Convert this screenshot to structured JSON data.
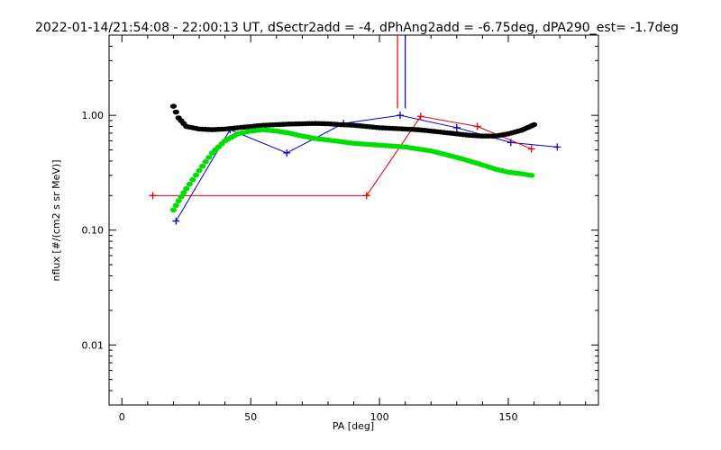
{
  "chart_data": {
    "type": "line",
    "title": "2022-01-14/21:54:08 - 22:00:13 UT, dSectr2add = -4, dPhAng2add = -6.75deg, dPA290_est=  -1.7deg",
    "xlabel": "PA [deg]",
    "ylabel": "nflux [#/(cm2 s sr MeV)]",
    "x_scale": "linear",
    "y_scale": "log",
    "xlim": [
      -5,
      185
    ],
    "ylim": [
      0.003,
      5
    ],
    "x_ticks": [
      0,
      50,
      100,
      150
    ],
    "x_tick_labels": [
      "0",
      "50",
      "100",
      "150"
    ],
    "y_ticks": [
      0.01,
      0.1,
      1.0
    ],
    "y_tick_labels": [
      "0.01",
      "0.10",
      "1.00"
    ],
    "grid": false,
    "legend": "none",
    "series": [
      {
        "color": "#0000cc",
        "style": "line+plus",
        "x": [
          21,
          42,
          64,
          86,
          108,
          130,
          151,
          169
        ],
        "y": [
          0.12,
          0.75,
          0.47,
          0.85,
          1.0,
          0.78,
          0.58,
          0.53
        ]
      },
      {
        "color": "#dd0000",
        "style": "line+plus",
        "x": [
          12,
          95,
          116,
          138,
          159
        ],
        "y": [
          0.2,
          0.2,
          0.98,
          0.8,
          0.51
        ]
      },
      {
        "color": "#dd0000",
        "style": "vertical-bar",
        "x": [
          107
        ],
        "y": [
          1.15
        ]
      },
      {
        "color": "#0000cc",
        "style": "vertical-bar",
        "x": [
          110
        ],
        "y": [
          1.15
        ]
      },
      {
        "color": "#000000",
        "style": "thick-dots",
        "x": [
          20,
          22,
          25,
          30,
          35,
          40,
          45,
          50,
          55,
          60,
          65,
          70,
          75,
          80,
          85,
          90,
          95,
          100,
          105,
          110,
          115,
          120,
          125,
          130,
          135,
          140,
          145,
          150,
          155,
          158,
          160
        ],
        "y": [
          1.2,
          0.95,
          0.8,
          0.76,
          0.75,
          0.76,
          0.78,
          0.8,
          0.82,
          0.83,
          0.84,
          0.845,
          0.85,
          0.845,
          0.83,
          0.82,
          0.8,
          0.78,
          0.77,
          0.76,
          0.75,
          0.73,
          0.71,
          0.69,
          0.67,
          0.66,
          0.66,
          0.69,
          0.74,
          0.79,
          0.83
        ]
      },
      {
        "color": "#00dd00",
        "style": "thick-dots",
        "x": [
          20,
          22,
          25,
          30,
          35,
          40,
          45,
          50,
          55,
          60,
          65,
          70,
          75,
          80,
          85,
          90,
          95,
          100,
          105,
          110,
          115,
          120,
          125,
          130,
          135,
          140,
          145,
          150,
          155,
          159
        ],
        "y": [
          0.15,
          0.18,
          0.23,
          0.33,
          0.47,
          0.6,
          0.69,
          0.73,
          0.75,
          0.73,
          0.7,
          0.66,
          0.63,
          0.61,
          0.59,
          0.57,
          0.56,
          0.55,
          0.54,
          0.53,
          0.51,
          0.49,
          0.46,
          0.43,
          0.4,
          0.37,
          0.34,
          0.32,
          0.31,
          0.3
        ]
      }
    ]
  }
}
